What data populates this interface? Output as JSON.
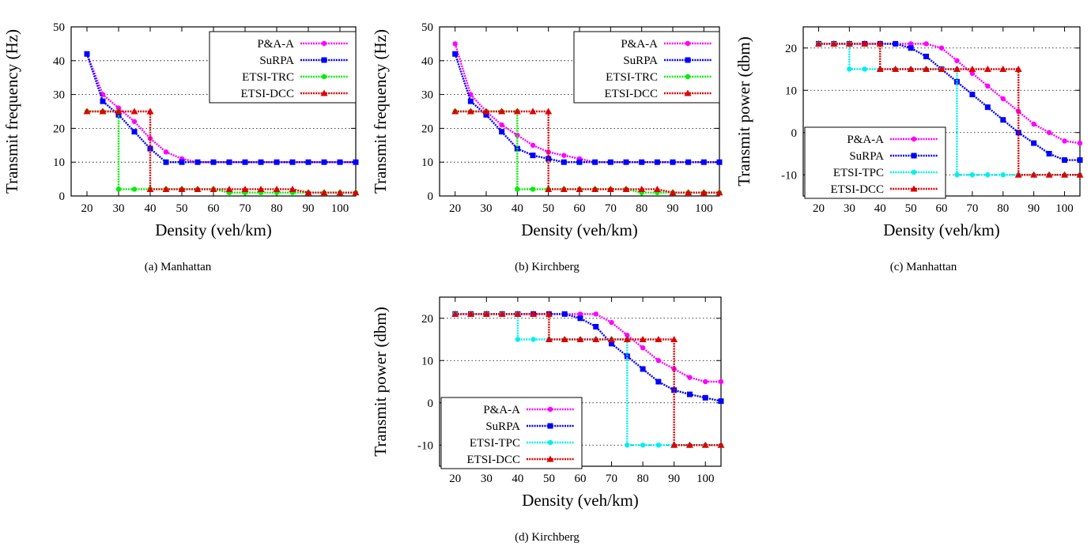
{
  "colors": {
    "pa": "#ff00ff",
    "surpa": "#0000ff",
    "trc": "#00ee00",
    "tpc": "#00eeee",
    "dcc": "#dd0000"
  },
  "panels": [
    {
      "caption": "(a)  Manhattan"
    },
    {
      "caption": "(b)  Kirchberg"
    },
    {
      "caption": "(c)  Manhattan"
    },
    {
      "caption": "(d)  Kirchberg"
    }
  ],
  "chart_data": [
    {
      "type": "line",
      "xlabel": "Density (veh/km)",
      "ylabel": "Transmit frequency (Hz)",
      "xlim": [
        15,
        105
      ],
      "ylim": [
        0,
        50
      ],
      "grid": "horizontal dotted",
      "legend": "top-right",
      "xticks": [
        "20",
        "30",
        "40",
        "50",
        "60",
        "70",
        "80",
        "90",
        "100"
      ],
      "yticks": [
        "0",
        "10",
        "20",
        "30",
        "40",
        "50"
      ],
      "series": [
        {
          "name": "P&A-A",
          "color": "pa",
          "marker": "circle",
          "x": [
            20,
            25,
            30,
            35,
            40,
            45,
            50,
            55,
            60,
            65,
            70,
            75,
            80,
            85,
            90,
            95,
            100,
            105
          ],
          "y": [
            42,
            30,
            26,
            22,
            17,
            13,
            11,
            10,
            10,
            10,
            10,
            10,
            10,
            10,
            10,
            10,
            10,
            10
          ]
        },
        {
          "name": "SuRPA",
          "color": "surpa",
          "marker": "square",
          "x": [
            20,
            25,
            30,
            35,
            40,
            45,
            50,
            55,
            60,
            65,
            70,
            75,
            80,
            85,
            90,
            95,
            100,
            105
          ],
          "y": [
            42,
            28,
            24,
            19,
            14,
            10,
            10,
            10,
            10,
            10,
            10,
            10,
            10,
            10,
            10,
            10,
            10,
            10
          ]
        },
        {
          "name": "ETSI-TRC",
          "color": "trc",
          "marker": "circle",
          "x": [
            20,
            25,
            30,
            30,
            35,
            40,
            45,
            50,
            55,
            60,
            65,
            70,
            75,
            80,
            85,
            90,
            95,
            100,
            105
          ],
          "y": [
            25,
            25,
            25,
            2,
            2,
            2,
            2,
            2,
            2,
            2,
            1,
            1,
            1,
            1,
            1,
            1,
            1,
            1,
            1
          ]
        },
        {
          "name": "ETSI-DCC",
          "color": "dcc",
          "marker": "triangle",
          "x": [
            20,
            25,
            30,
            35,
            40,
            40,
            45,
            50,
            55,
            60,
            65,
            70,
            75,
            80,
            85,
            90,
            95,
            100,
            105
          ],
          "y": [
            25,
            25,
            25,
            25,
            25,
            2,
            2,
            2,
            2,
            2,
            2,
            2,
            2,
            2,
            2,
            1,
            1,
            1,
            1
          ]
        }
      ]
    },
    {
      "type": "line",
      "xlabel": "Density (veh/km)",
      "ylabel": "Transmit frequency (Hz)",
      "xlim": [
        15,
        105
      ],
      "ylim": [
        0,
        50
      ],
      "grid": "horizontal dotted",
      "legend": "top-right",
      "xticks": [
        "20",
        "30",
        "40",
        "50",
        "60",
        "70",
        "80",
        "90",
        "100"
      ],
      "yticks": [
        "0",
        "10",
        "20",
        "30",
        "40",
        "50"
      ],
      "series": [
        {
          "name": "P&A-A",
          "color": "pa",
          "marker": "circle",
          "x": [
            20,
            25,
            30,
            35,
            40,
            45,
            50,
            55,
            60,
            65,
            70,
            75,
            80,
            85,
            90,
            95,
            100,
            105
          ],
          "y": [
            45,
            30,
            25,
            21,
            18,
            15,
            13,
            12,
            11,
            10,
            10,
            10,
            10,
            10,
            10,
            10,
            10,
            10
          ]
        },
        {
          "name": "SuRPA",
          "color": "surpa",
          "marker": "square",
          "x": [
            20,
            25,
            30,
            35,
            40,
            45,
            50,
            55,
            60,
            65,
            70,
            75,
            80,
            85,
            90,
            95,
            100,
            105
          ],
          "y": [
            42,
            28,
            24,
            19,
            14,
            12,
            11,
            10,
            10,
            10,
            10,
            10,
            10,
            10,
            10,
            10,
            10,
            10
          ]
        },
        {
          "name": "ETSI-TRC",
          "color": "trc",
          "marker": "circle",
          "x": [
            20,
            25,
            30,
            35,
            40,
            40,
            45,
            50,
            55,
            60,
            65,
            70,
            75,
            80,
            85,
            90,
            95,
            100,
            105
          ],
          "y": [
            25,
            25,
            25,
            25,
            25,
            2,
            2,
            2,
            2,
            2,
            2,
            2,
            2,
            1,
            1,
            1,
            1,
            1,
            1
          ]
        },
        {
          "name": "ETSI-DCC",
          "color": "dcc",
          "marker": "triangle",
          "x": [
            20,
            25,
            30,
            35,
            40,
            45,
            50,
            50,
            55,
            60,
            65,
            70,
            75,
            80,
            85,
            90,
            95,
            100,
            105
          ],
          "y": [
            25,
            25,
            25,
            25,
            25,
            25,
            25,
            2,
            2,
            2,
            2,
            2,
            2,
            2,
            2,
            1,
            1,
            1,
            1
          ]
        }
      ]
    },
    {
      "type": "line",
      "xlabel": "Density (veh/km)",
      "ylabel": "Transmit power (dbm)",
      "xlim": [
        15,
        105
      ],
      "ylim": [
        -15,
        25
      ],
      "grid": "horizontal dotted",
      "legend": "bottom-left",
      "xticks": [
        "20",
        "30",
        "40",
        "50",
        "60",
        "70",
        "80",
        "90",
        "100"
      ],
      "yticks": [
        "-10",
        "0",
        "10",
        "20"
      ],
      "series": [
        {
          "name": "P&A-A",
          "color": "pa",
          "marker": "circle",
          "x": [
            20,
            25,
            30,
            35,
            40,
            45,
            50,
            55,
            60,
            65,
            70,
            75,
            80,
            85,
            90,
            95,
            100,
            105
          ],
          "y": [
            21,
            21,
            21,
            21,
            21,
            21,
            21,
            21,
            20,
            17,
            14,
            11,
            8,
            5,
            2,
            0,
            -2,
            -2.5
          ]
        },
        {
          "name": "SuRPA",
          "color": "surpa",
          "marker": "square",
          "x": [
            20,
            25,
            30,
            35,
            40,
            45,
            50,
            55,
            60,
            65,
            70,
            75,
            80,
            85,
            90,
            95,
            100,
            105
          ],
          "y": [
            21,
            21,
            21,
            21,
            21,
            21,
            20,
            18,
            15,
            12,
            9,
            6,
            3,
            0,
            -2.5,
            -5,
            -6.5,
            -6.5
          ]
        },
        {
          "name": "ETSI-TPC",
          "color": "tpc",
          "marker": "circle",
          "x": [
            20,
            25,
            30,
            30,
            35,
            40,
            45,
            50,
            55,
            60,
            65,
            65,
            70,
            75,
            80,
            85,
            90,
            95,
            100,
            105
          ],
          "y": [
            21,
            21,
            21,
            15,
            15,
            15,
            15,
            15,
            15,
            15,
            15,
            -10,
            -10,
            -10,
            -10,
            -10,
            -10,
            -10,
            -10,
            -10
          ]
        },
        {
          "name": "ETSI-DCC",
          "color": "dcc",
          "marker": "triangle",
          "x": [
            20,
            25,
            30,
            35,
            40,
            40,
            45,
            50,
            55,
            60,
            65,
            70,
            75,
            80,
            85,
            85,
            90,
            95,
            100,
            105
          ],
          "y": [
            21,
            21,
            21,
            21,
            21,
            15,
            15,
            15,
            15,
            15,
            15,
            15,
            15,
            15,
            15,
            -10,
            -10,
            -10,
            -10,
            -10
          ]
        }
      ]
    },
    {
      "type": "line",
      "xlabel": "Density (veh/km)",
      "ylabel": "Transmit power (dbm)",
      "xlim": [
        15,
        105
      ],
      "ylim": [
        -15,
        25
      ],
      "grid": "horizontal dotted",
      "legend": "bottom-left",
      "xticks": [
        "20",
        "30",
        "40",
        "50",
        "60",
        "70",
        "80",
        "90",
        "100"
      ],
      "yticks": [
        "-10",
        "0",
        "10",
        "20"
      ],
      "series": [
        {
          "name": "P&A-A",
          "color": "pa",
          "marker": "circle",
          "x": [
            20,
            25,
            30,
            35,
            40,
            45,
            50,
            55,
            60,
            65,
            70,
            75,
            80,
            85,
            90,
            95,
            100,
            105
          ],
          "y": [
            21,
            21,
            21,
            21,
            21,
            21,
            21,
            21,
            21,
            21,
            19,
            16,
            13,
            10,
            8,
            6,
            5,
            5
          ]
        },
        {
          "name": "SuRPA",
          "color": "surpa",
          "marker": "square",
          "x": [
            20,
            25,
            30,
            35,
            40,
            45,
            50,
            55,
            60,
            65,
            70,
            75,
            80,
            85,
            90,
            95,
            100,
            105
          ],
          "y": [
            21,
            21,
            21,
            21,
            21,
            21,
            21,
            21,
            20,
            18,
            14,
            11,
            8,
            5,
            3,
            2,
            1.2,
            0.4
          ]
        },
        {
          "name": "ETSI-TPC",
          "color": "tpc",
          "marker": "circle",
          "x": [
            20,
            25,
            30,
            35,
            40,
            40,
            45,
            50,
            55,
            60,
            65,
            70,
            75,
            75,
            80,
            85,
            90,
            95,
            100,
            105
          ],
          "y": [
            21,
            21,
            21,
            21,
            21,
            15,
            15,
            15,
            15,
            15,
            15,
            15,
            15,
            -10,
            -10,
            -10,
            -10,
            -10,
            -10,
            -10
          ]
        },
        {
          "name": "ETSI-DCC",
          "color": "dcc",
          "marker": "triangle",
          "x": [
            20,
            25,
            30,
            35,
            40,
            45,
            50,
            50,
            55,
            60,
            65,
            70,
            75,
            80,
            85,
            90,
            90,
            95,
            100,
            105
          ],
          "y": [
            21,
            21,
            21,
            21,
            21,
            21,
            21,
            15,
            15,
            15,
            15,
            15,
            15,
            15,
            15,
            15,
            -10,
            -10,
            -10,
            -10
          ]
        }
      ]
    }
  ]
}
